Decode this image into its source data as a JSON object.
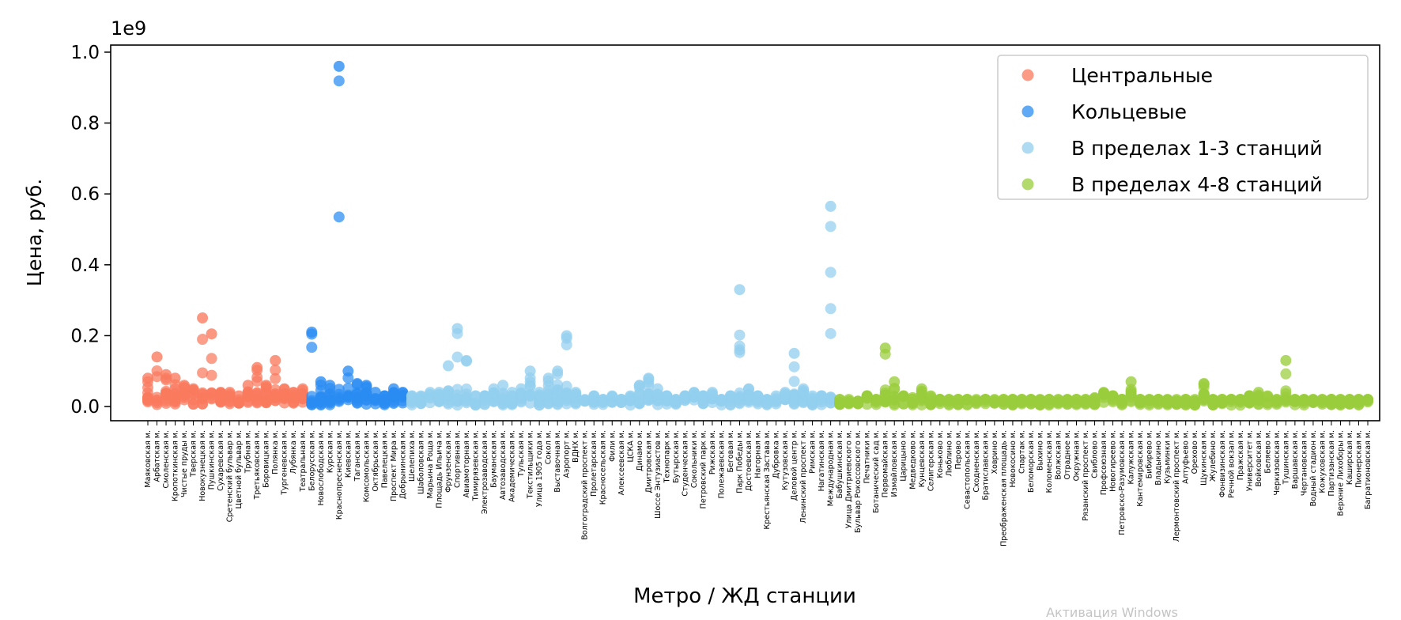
{
  "chart_data": {
    "type": "scatter",
    "title": "",
    "xlabel": "Метро / ЖД станции",
    "ylabel": "Цена, руб.",
    "y_scale_label": "1e9",
    "ylim": [
      -0.04,
      1.02
    ],
    "yticks": [
      0.0,
      0.2,
      0.4,
      0.6,
      0.8,
      1.0
    ],
    "ytick_labels": [
      "0.0",
      "0.2",
      "0.4",
      "0.6",
      "0.8",
      "1.0"
    ],
    "grid": false,
    "legend_position": "top-right",
    "series": [
      {
        "name": "Центральные",
        "color": "#fa7a5e",
        "stations": [
          "Маяковская м.",
          "Арбатская м.",
          "Смоленская м.",
          "Кропоткинская м.",
          "Чистые пруды м.",
          "Тверская м.",
          "Новокузнецкая м.",
          "Пушкинская м.",
          "Сухаревская м.",
          "Сретенский бульвар м.",
          "Цветной бульвар м.",
          "Трубная м.",
          "Третьяковская м.",
          "Боровицкая м.",
          "Полянка м.",
          "Тургеневская м.",
          "Лубянка м.",
          "Театральная м."
        ],
        "max_values": [
          0.08,
          0.14,
          0.09,
          0.08,
          0.06,
          0.05,
          0.25,
          0.205,
          0.04,
          0.04,
          0.03,
          0.06,
          0.11,
          0.06,
          0.13,
          0.05,
          0.04,
          0.05
        ]
      },
      {
        "name": "Кольцевые",
        "color": "#2a8cf2",
        "stations": [
          "Белорусская м.",
          "Новослободская м.",
          "Курская м.",
          "Краснопресненская м.",
          "Киевская м.",
          "Таганская м.",
          "Комсомольская м.",
          "Октябрьская м.",
          "Павелецкая м.",
          "Проспект Мира м.",
          "Добрынинская м."
        ],
        "max_values": [
          0.21,
          0.07,
          0.06,
          0.96,
          0.1,
          0.065,
          0.06,
          0.04,
          0.03,
          0.05,
          0.04
        ]
      },
      {
        "name": "В пределах 1-3 станций",
        "color": "#93cfee",
        "stations": [
          "Шелепиха м.",
          "Шаболовская м.",
          "Марьина Роща м.",
          "Площадь Ильича м.",
          "Фрунзенская м.",
          "Спортивная м.",
          "Авиамоторная м.",
          "Тимирязевская м.",
          "Электрозаводская м.",
          "Бауманская м.",
          "Автозаводская м.",
          "Академическая м.",
          "Тульская м.",
          "Текстильщики м.",
          "Улица 1905 года м.",
          "Сокол м.",
          "Выставочная м.",
          "Аэропорт м.",
          "ВДНХ м.",
          "Волгоградский проспект м.",
          "Пролетарская м.",
          "Красносельская м.",
          "Фили м.",
          "Алексеевская м.",
          "ЦСКА м.",
          "Динамо м.",
          "Дмитровская м.",
          "Шоссе Энтузиастов м.",
          "Технопарк м.",
          "Бутырская м.",
          "Студенческая м.",
          "Сокольники м.",
          "Петровский парк м.",
          "Рижская м.",
          "Полежаевская м.",
          "Беговая м.",
          "Парк Победы м.",
          "Достоевская м.",
          "Нагорная м.",
          "Крестьянская Застава м.",
          "Дубровка м.",
          "Кутузовская м.",
          "Деловой центр м.",
          "Ленинский проспект м.",
          "Римская м.",
          "Нагатинская м.",
          "Международная м."
        ],
        "max_values": [
          0.03,
          0.03,
          0.04,
          0.04,
          0.115,
          0.22,
          0.13,
          0.03,
          0.03,
          0.05,
          0.06,
          0.04,
          0.05,
          0.1,
          0.04,
          0.08,
          0.1,
          0.2,
          0.04,
          0.02,
          0.03,
          0.02,
          0.03,
          0.02,
          0.03,
          0.06,
          0.08,
          0.05,
          0.03,
          0.02,
          0.03,
          0.04,
          0.03,
          0.04,
          0.02,
          0.03,
          0.33,
          0.05,
          0.03,
          0.02,
          0.03,
          0.04,
          0.15,
          0.05,
          0.03,
          0.03,
          0.565
        ]
      },
      {
        "name": "В пределах 4-8 станций",
        "color": "#9acd3c",
        "stations": [
          "Бабушкинская м.",
          "Улица Дмитриевского м.",
          "Бульвар Рокоссовского м.",
          "Печатники м.",
          "Ботанический сад м.",
          "Первомайская м.",
          "Измайловская м.",
          "Царицыно м.",
          "Медведково м.",
          "Кунцевская м.",
          "Селигерская м.",
          "Коньково м.",
          "Люблино м.",
          "Перово м.",
          "Севастопольская м.",
          "Сходненская м.",
          "Братиславская м.",
          "Ховрино м.",
          "Преображенская площадь м.",
          "Новокосино м.",
          "Спартак м.",
          "Беломорская м.",
          "Выхино м.",
          "Коломенская м.",
          "Волжская м.",
          "Отрадное м.",
          "Окружная м.",
          "Рязанский проспект м.",
          "Свиблово м.",
          "Профсоюзная м.",
          "Новогиреево м.",
          "Петровско-Разумовская м.",
          "Калужская м.",
          "Кантемировская м.",
          "Бибирево м.",
          "Владыкино м.",
          "Кузьминки м.",
          "Лермонтовский проспект м.",
          "Алтуфьево м.",
          "Орехово м.",
          "Щукинская м.",
          "Жулебино м.",
          "Фонвизинская м.",
          "Речной вокзал м.",
          "Пражская м.",
          "Университет м.",
          "Войковская м.",
          "Беляево м.",
          "Черкизовская м.",
          "Тушинская м.",
          "Варшавская м.",
          "Чертановская м.",
          "Водный стадион м.",
          "Кожуховская м.",
          "Партизанская м.",
          "Верхние Лихоборы м.",
          "Каширская м.",
          "Пионерская м.",
          "Багратионовская м."
        ],
        "max_values": [
          0.02,
          0.02,
          0.015,
          0.03,
          0.02,
          0.165,
          0.07,
          0.03,
          0.025,
          0.05,
          0.03,
          0.02,
          0.02,
          0.02,
          0.02,
          0.02,
          0.02,
          0.02,
          0.02,
          0.02,
          0.02,
          0.02,
          0.02,
          0.02,
          0.02,
          0.02,
          0.02,
          0.02,
          0.025,
          0.04,
          0.03,
          0.02,
          0.07,
          0.02,
          0.02,
          0.02,
          0.02,
          0.02,
          0.02,
          0.02,
          0.065,
          0.02,
          0.02,
          0.02,
          0.02,
          0.03,
          0.04,
          0.03,
          0.02,
          0.13,
          0.02,
          0.02,
          0.02,
          0.02,
          0.02,
          0.02,
          0.02,
          0.02,
          0.02
        ]
      }
    ]
  },
  "watermark": "Активация Windows"
}
